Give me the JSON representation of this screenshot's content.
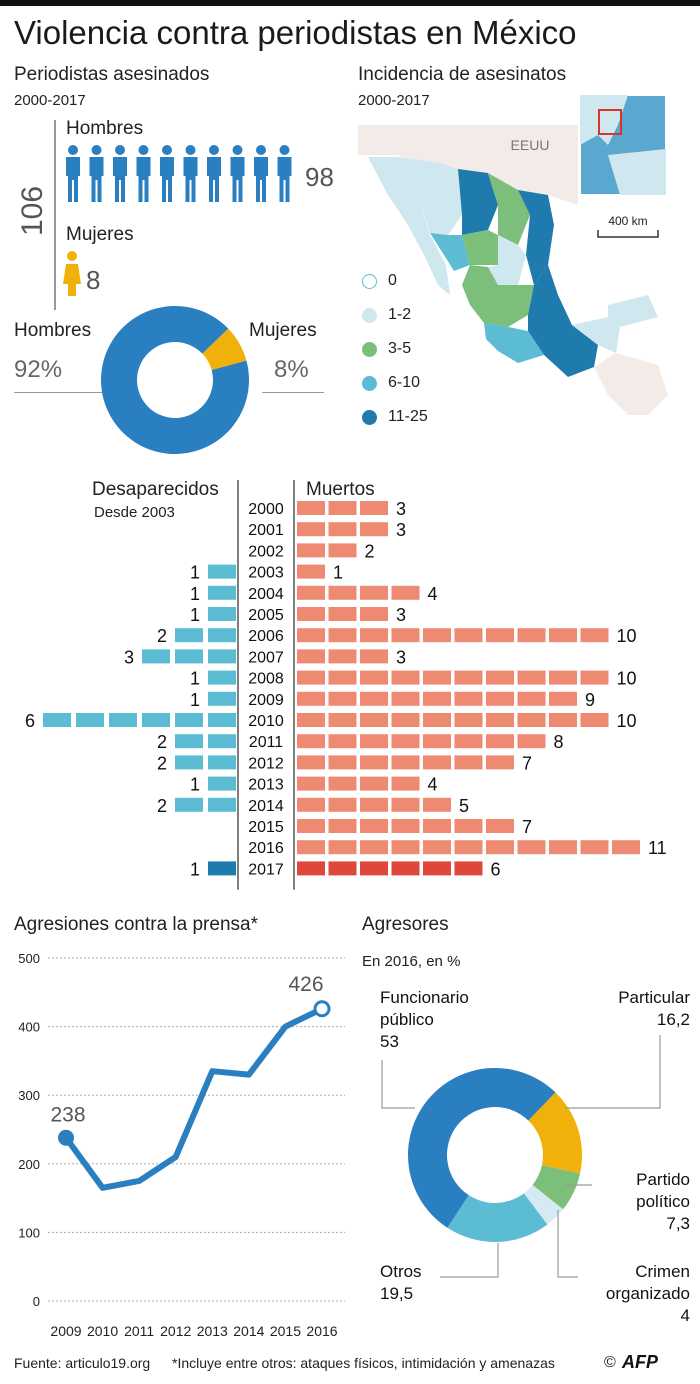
{
  "title": "Violencia contra periodistas en México",
  "killed": {
    "title": "Periodistas asesinados",
    "period": "2000-2017",
    "total": "106",
    "men_label": "Hombres",
    "men_count": "98",
    "women_label": "Mujeres",
    "women_count": "8",
    "donut_men_label": "Hombres",
    "donut_men_pct": "92%",
    "donut_women_label": "Mujeres",
    "donut_women_pct": "8%",
    "men_color": "#2a7fc1",
    "women_color": "#f0b20a"
  },
  "map": {
    "title": "Incidencia de asesinatos",
    "period": "2000-2017",
    "country_label": "EEUU",
    "scale_label": "400 km",
    "legend": [
      {
        "label": "0",
        "color": "#ffffff"
      },
      {
        "label": "1-2",
        "color": "#cfe7ee"
      },
      {
        "label": "3-5",
        "color": "#7bbf7a"
      },
      {
        "label": "6-10",
        "color": "#5bbcd3"
      },
      {
        "label": "11-25",
        "color": "#1f7bad"
      }
    ]
  },
  "yearly": {
    "left_title": "Desaparecidos",
    "left_subtitle": "Desde 2003",
    "right_title": "Muertos"
  },
  "aggressions": {
    "title": "Agresiones contra la prensa*"
  },
  "aggressors": {
    "title": "Agresores",
    "subtitle": "En 2016, en %",
    "labels": [
      {
        "line1": "Funcionario",
        "line2": "público",
        "value": "53"
      },
      {
        "line1": "Particular",
        "line2": "",
        "value": "16,2"
      },
      {
        "line1": "Partido",
        "line2": "político",
        "value": "7,3"
      },
      {
        "line1": "Crimen",
        "line2": "organizado",
        "value": "4"
      },
      {
        "line1": "Otros",
        "line2": "",
        "value": "19,5"
      }
    ]
  },
  "footer": {
    "source": "Fuente: articulo19.org",
    "note": "*Incluye entre otros: ataques físicos, intimidación y amenazas",
    "copyright": "©",
    "brand": "AFP"
  },
  "chart_data": [
    {
      "type": "bar",
      "name": "Desaparecidos y Muertos",
      "categories": [
        "2000",
        "2001",
        "2002",
        "2003",
        "2004",
        "2005",
        "2006",
        "2007",
        "2008",
        "2009",
        "2010",
        "2011",
        "2012",
        "2013",
        "2014",
        "2015",
        "2016",
        "2017"
      ],
      "series": [
        {
          "name": "Desaparecidos",
          "values": [
            0,
            0,
            0,
            1,
            1,
            1,
            2,
            3,
            1,
            1,
            6,
            2,
            2,
            1,
            2,
            0,
            0,
            1
          ]
        },
        {
          "name": "Muertos",
          "values": [
            3,
            3,
            2,
            1,
            4,
            3,
            10,
            3,
            10,
            9,
            10,
            8,
            7,
            4,
            5,
            7,
            11,
            6
          ]
        }
      ]
    },
    {
      "type": "line",
      "x": [
        2009,
        2010,
        2011,
        2012,
        2013,
        2014,
        2015,
        2016
      ],
      "values": [
        238,
        165,
        175,
        210,
        335,
        330,
        400,
        426
      ],
      "ylim": [
        0,
        500
      ],
      "yticks": [
        0,
        100,
        200,
        300,
        400,
        500
      ],
      "labeled": [
        {
          "x": 2009,
          "label": "238"
        },
        {
          "x": 2016,
          "label": "426"
        }
      ]
    },
    {
      "type": "pie",
      "categories": [
        "Funcionario público",
        "Particular",
        "Partido político",
        "Crimen organizado",
        "Otros"
      ],
      "values": [
        53,
        16.2,
        7.3,
        4,
        19.5
      ],
      "colors": [
        "#2a7fc1",
        "#f0b20a",
        "#7bbf7a",
        "#d6ebf1",
        "#5bbcd3"
      ]
    }
  ]
}
